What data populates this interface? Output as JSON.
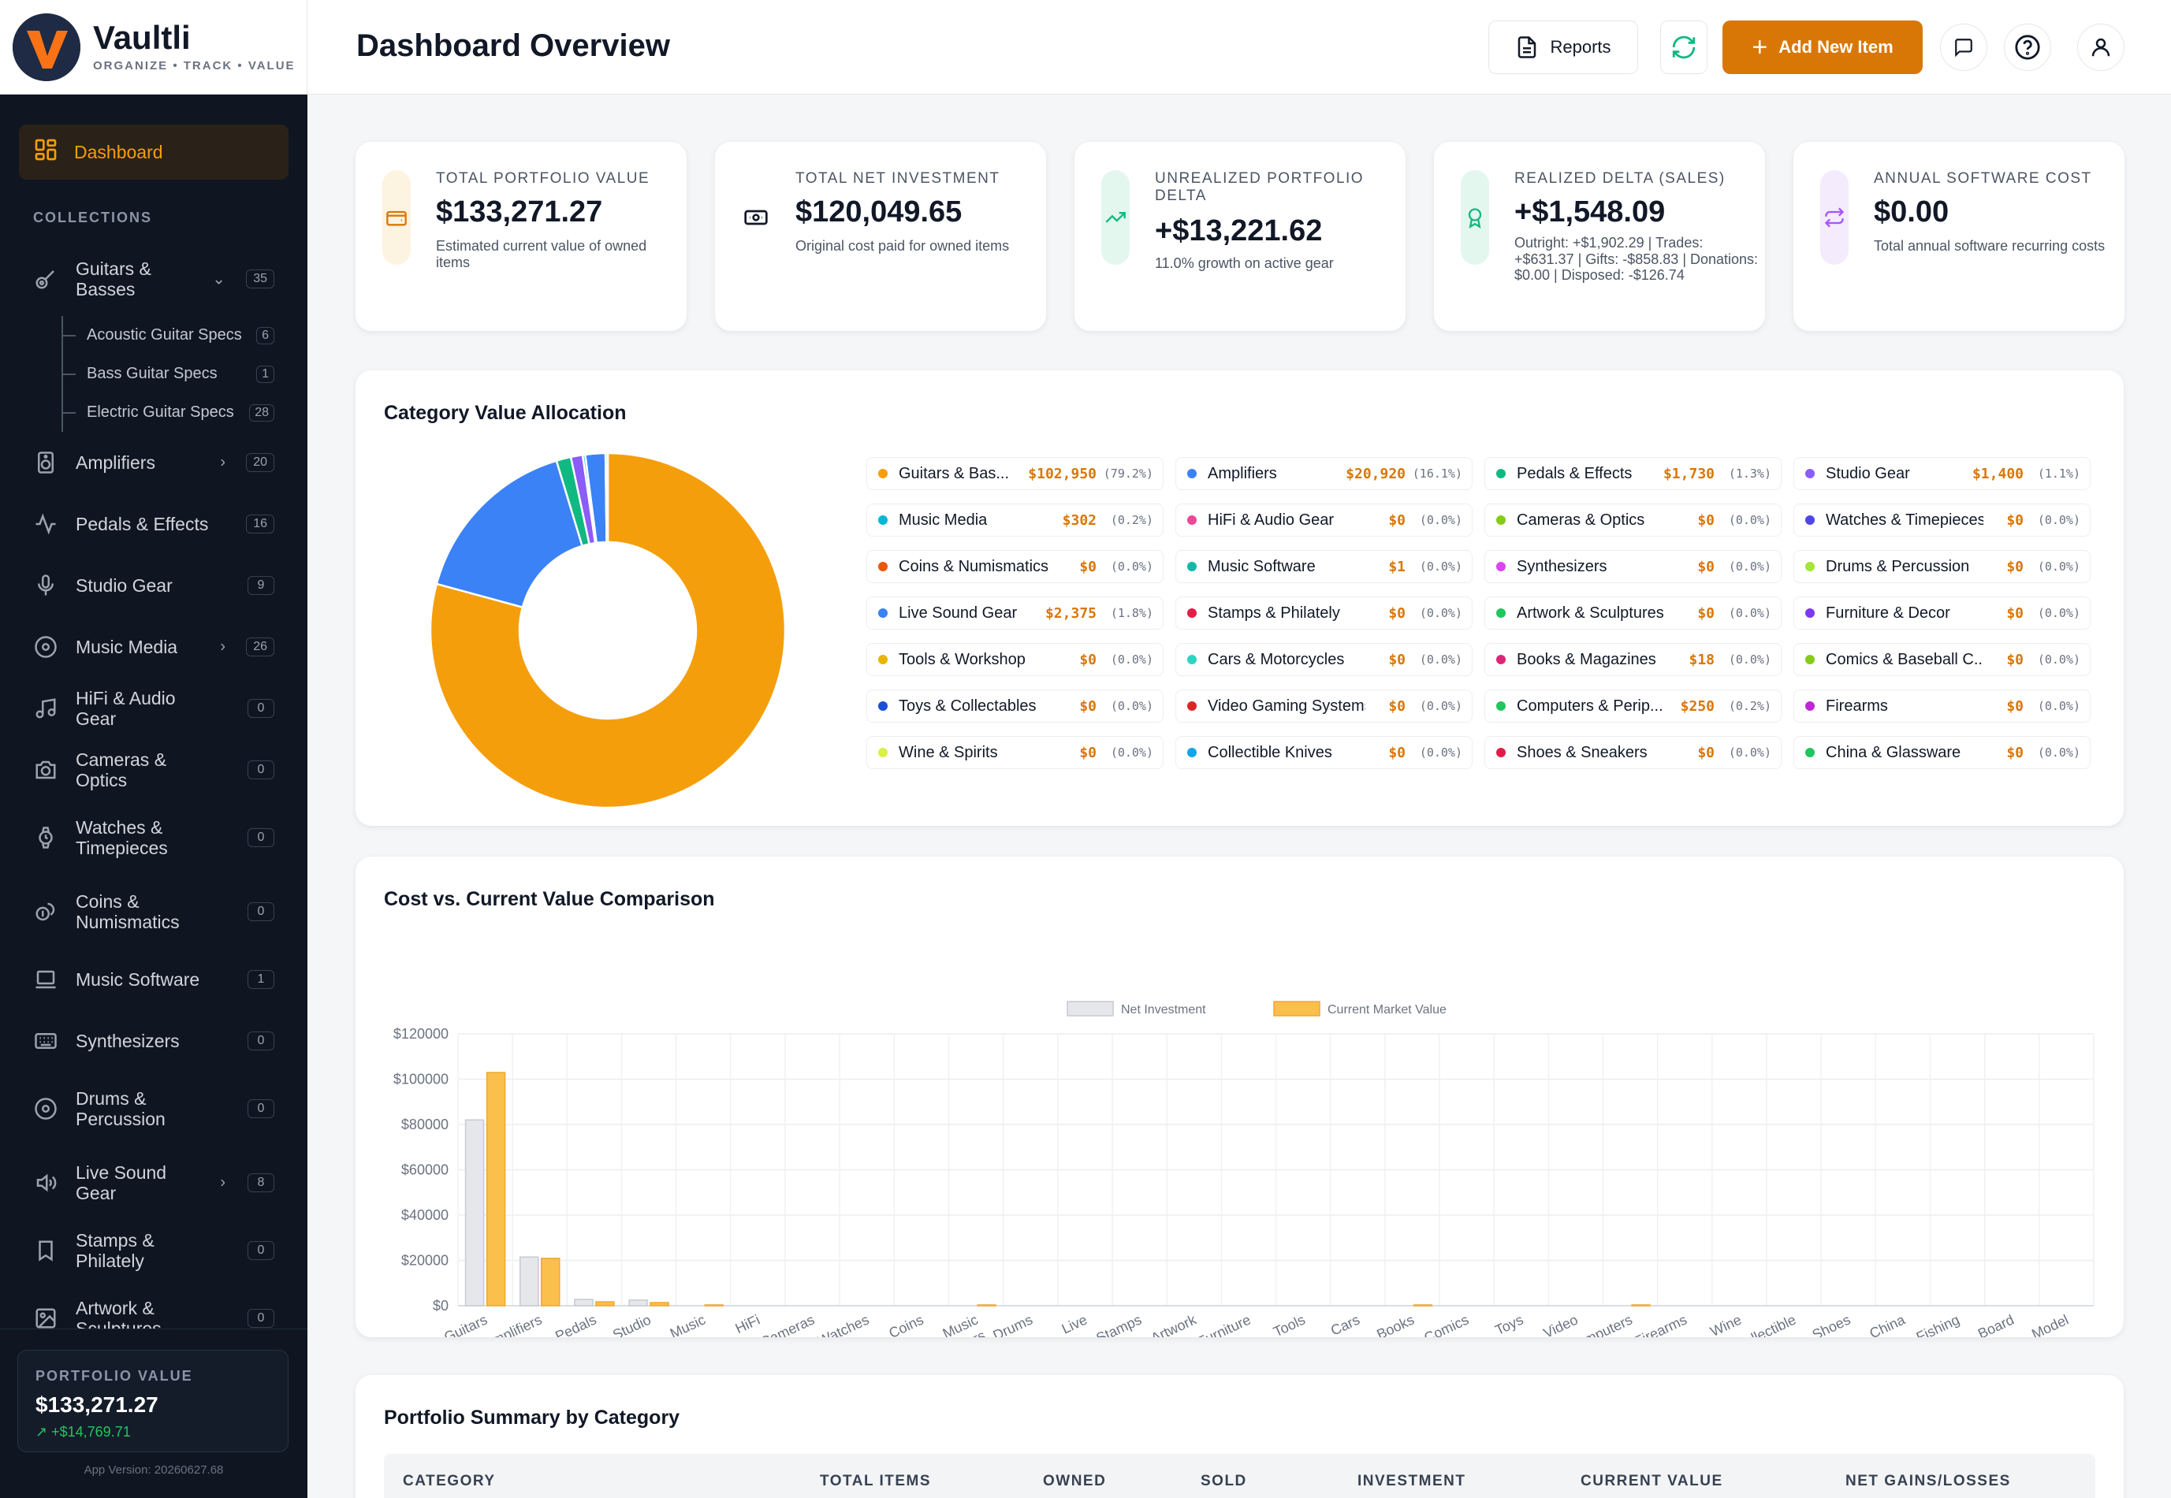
{
  "app": {
    "name": "Vaultli",
    "tagline": "ORGANIZE • TRACK • VALUE",
    "version": "App Version: 20260627.68"
  },
  "sidebar": {
    "dashboard_label": "Dashboard",
    "section_label": "COLLECTIONS",
    "items": [
      {
        "label": "Guitars & Basses",
        "count": "35",
        "icon": "guitar-icon",
        "expanded": true,
        "children": [
          {
            "label": "Acoustic Guitar Specs",
            "count": "6"
          },
          {
            "label": "Bass Guitar Specs",
            "count": "1"
          },
          {
            "label": "Electric Guitar Specs",
            "count": "28"
          }
        ]
      },
      {
        "label": "Amplifiers",
        "count": "20",
        "icon": "speaker-icon",
        "chevron": true
      },
      {
        "label": "Pedals & Effects",
        "count": "16",
        "icon": "activity-icon"
      },
      {
        "label": "Studio Gear",
        "count": "9",
        "icon": "microphone-icon"
      },
      {
        "label": "Music Media",
        "count": "26",
        "icon": "disc-icon",
        "chevron": true
      },
      {
        "label": "HiFi & Audio Gear",
        "count": "0",
        "icon": "music-note-icon"
      },
      {
        "label": "Cameras & Optics",
        "count": "0",
        "icon": "camera-icon"
      },
      {
        "label": "Watches & Timepieces",
        "count": "0",
        "icon": "watch-icon"
      },
      {
        "label": "Coins & Numismatics",
        "count": "0",
        "icon": "coins-icon"
      },
      {
        "label": "Music Software",
        "count": "1",
        "icon": "laptop-icon"
      },
      {
        "label": "Synthesizers",
        "count": "0",
        "icon": "keyboard-icon"
      },
      {
        "label": "Drums & Percussion",
        "count": "0",
        "icon": "drum-icon"
      },
      {
        "label": "Live Sound Gear",
        "count": "8",
        "icon": "volume-icon",
        "chevron": true
      },
      {
        "label": "Stamps & Philately",
        "count": "0",
        "icon": "bookmark-icon"
      },
      {
        "label": "Artwork & Sculptures",
        "count": "0",
        "icon": "image-icon"
      }
    ],
    "portfolio": {
      "label": "PORTFOLIO VALUE",
      "value": "$133,271.27",
      "delta": "+$14,769.71"
    }
  },
  "header": {
    "title": "Dashboard Overview",
    "reports_label": "Reports",
    "add_label": "Add New Item"
  },
  "stats": [
    {
      "label": "TOTAL PORTFOLIO VALUE",
      "value": "$133,271.27",
      "desc": "Estimated current value of owned items",
      "color": "#d97706",
      "bg": "#fdf3e1",
      "icon": "wallet-icon"
    },
    {
      "label": "TOTAL NET INVESTMENT",
      "value": "$120,049.65",
      "desc": "Original cost paid for owned items",
      "color": "#111827",
      "bg": "#ffffff",
      "icon": "banknote-icon"
    },
    {
      "label": "UNREALIZED PORTFOLIO DELTA",
      "value": "+$13,221.62",
      "desc": "11.0% growth on active gear",
      "color": "#10b981",
      "bg": "#e3f7ef",
      "icon": "trending-up-icon"
    },
    {
      "label": "REALIZED DELTA (SALES)",
      "value": "+$1,548.09",
      "desc": "Outright: +$1,902.29 | Trades: +$631.37 | Gifts: -$858.83 | Donations: $0.00 | Disposed: -$126.74",
      "color": "#10b981",
      "bg": "#e3f7ef",
      "icon": "award-icon"
    },
    {
      "label": "ANNUAL SOFTWARE COST",
      "value": "$0.00",
      "desc": "Total annual software recurring costs",
      "color": "#a855f7",
      "bg": "#f4ebfd",
      "icon": "repeat-icon"
    }
  ],
  "allocation": {
    "title": "Category Value Allocation",
    "items": [
      {
        "name": "Guitars & Bas...",
        "value": "$102,950",
        "pct": "(79.2%)",
        "color": "#f59e0b"
      },
      {
        "name": "Amplifiers",
        "value": "$20,920",
        "pct": "(16.1%)",
        "color": "#3b82f6"
      },
      {
        "name": "Pedals & Effects",
        "value": "$1,730",
        "pct": "(1.3%)",
        "color": "#10b981"
      },
      {
        "name": "Studio Gear",
        "value": "$1,400",
        "pct": "(1.1%)",
        "color": "#8b5cf6"
      },
      {
        "name": "Music Media",
        "value": "$302",
        "pct": "(0.2%)",
        "color": "#06b6d4"
      },
      {
        "name": "HiFi & Audio Gear",
        "value": "$0",
        "pct": "(0.0%)",
        "color": "#ec4899"
      },
      {
        "name": "Cameras & Optics",
        "value": "$0",
        "pct": "(0.0%)",
        "color": "#84cc16"
      },
      {
        "name": "Watches & Timepieces",
        "value": "$0",
        "pct": "(0.0%)",
        "color": "#4f46e5"
      },
      {
        "name": "Coins & Numismatics",
        "value": "$0",
        "pct": "(0.0%)",
        "color": "#ea580c"
      },
      {
        "name": "Music Software",
        "value": "$1",
        "pct": "(0.0%)",
        "color": "#14b8a6"
      },
      {
        "name": "Synthesizers",
        "value": "$0",
        "pct": "(0.0%)",
        "color": "#d946ef"
      },
      {
        "name": "Drums & Percussion",
        "value": "$0",
        "pct": "(0.0%)",
        "color": "#a3e635"
      },
      {
        "name": "Live Sound Gear",
        "value": "$2,375",
        "pct": "(1.8%)",
        "color": "#3b82f6"
      },
      {
        "name": "Stamps & Philately",
        "value": "$0",
        "pct": "(0.0%)",
        "color": "#e11d48"
      },
      {
        "name": "Artwork & Sculptures",
        "value": "$0",
        "pct": "(0.0%)",
        "color": "#22c55e"
      },
      {
        "name": "Furniture & Decor",
        "value": "$0",
        "pct": "(0.0%)",
        "color": "#7c3aed"
      },
      {
        "name": "Tools & Workshop",
        "value": "$0",
        "pct": "(0.0%)",
        "color": "#eab308"
      },
      {
        "name": "Cars & Motorcycles",
        "value": "$0",
        "pct": "(0.0%)",
        "color": "#2dd4bf"
      },
      {
        "name": "Books & Magazines",
        "value": "$18",
        "pct": "(0.0%)",
        "color": "#db2777"
      },
      {
        "name": "Comics & Baseball C...",
        "value": "$0",
        "pct": "(0.0%)",
        "color": "#84cc16"
      },
      {
        "name": "Toys & Collectables",
        "value": "$0",
        "pct": "(0.0%)",
        "color": "#1d4ed8"
      },
      {
        "name": "Video Gaming Systems",
        "value": "$0",
        "pct": "(0.0%)",
        "color": "#dc2626"
      },
      {
        "name": "Computers & Perip...",
        "value": "$250",
        "pct": "(0.2%)",
        "color": "#22c55e"
      },
      {
        "name": "Firearms",
        "value": "$0",
        "pct": "(0.0%)",
        "color": "#c026d3"
      },
      {
        "name": "Wine & Spirits",
        "value": "$0",
        "pct": "(0.0%)",
        "color": "#d9f045"
      },
      {
        "name": "Collectible Knives",
        "value": "$0",
        "pct": "(0.0%)",
        "color": "#0ea5e9"
      },
      {
        "name": "Shoes & Sneakers",
        "value": "$0",
        "pct": "(0.0%)",
        "color": "#e11d48"
      },
      {
        "name": "China & Glassware",
        "value": "$0",
        "pct": "(0.0%)",
        "color": "#22c55e"
      }
    ]
  },
  "chart_data": {
    "type": "bar",
    "title": "Cost vs. Current Value Comparison",
    "categories": [
      "Guitars",
      "Amplifiers",
      "Pedals",
      "Studio",
      "Music",
      "HiFi",
      "Cameras",
      "Watches",
      "Coins",
      "Music Synthesizers",
      "Drums",
      "Live",
      "Stamps",
      "Artwork",
      "Furniture",
      "Tools",
      "Cars",
      "Books",
      "Comics",
      "Toys",
      "Video",
      "Computers",
      "Firearms",
      "Wine",
      "Collectible",
      "Shoes",
      "China",
      "Fishing",
      "Board",
      "Model"
    ],
    "series": [
      {
        "name": "Net Investment",
        "color": "#e5e7eb",
        "values": [
          82000,
          21500,
          2800,
          2500,
          0,
          0,
          0,
          0,
          0,
          0,
          0,
          0,
          0,
          0,
          0,
          0,
          0,
          0,
          0,
          0,
          0,
          0,
          0,
          0,
          0,
          0,
          0,
          0,
          0,
          0
        ]
      },
      {
        "name": "Current Market Value",
        "color": "#fbbf4c",
        "values": [
          102950,
          20920,
          1730,
          1400,
          302,
          0,
          0,
          0,
          0,
          1,
          0,
          0,
          0,
          0,
          0,
          0,
          0,
          18,
          0,
          0,
          0,
          250,
          0,
          0,
          0,
          0,
          0,
          0,
          0,
          0
        ]
      }
    ],
    "y_ticks": [
      "$0",
      "$20000",
      "$40000",
      "$60000",
      "$80000",
      "$100000",
      "$120000"
    ],
    "ylim": [
      0,
      120000
    ],
    "grid": true,
    "legend": "top-center"
  },
  "summary": {
    "title": "Portfolio Summary by Category",
    "columns": [
      "CATEGORY",
      "TOTAL ITEMS",
      "OWNED",
      "SOLD",
      "INVESTMENT",
      "CURRENT VALUE",
      "NET GAINS/LOSSES"
    ]
  }
}
